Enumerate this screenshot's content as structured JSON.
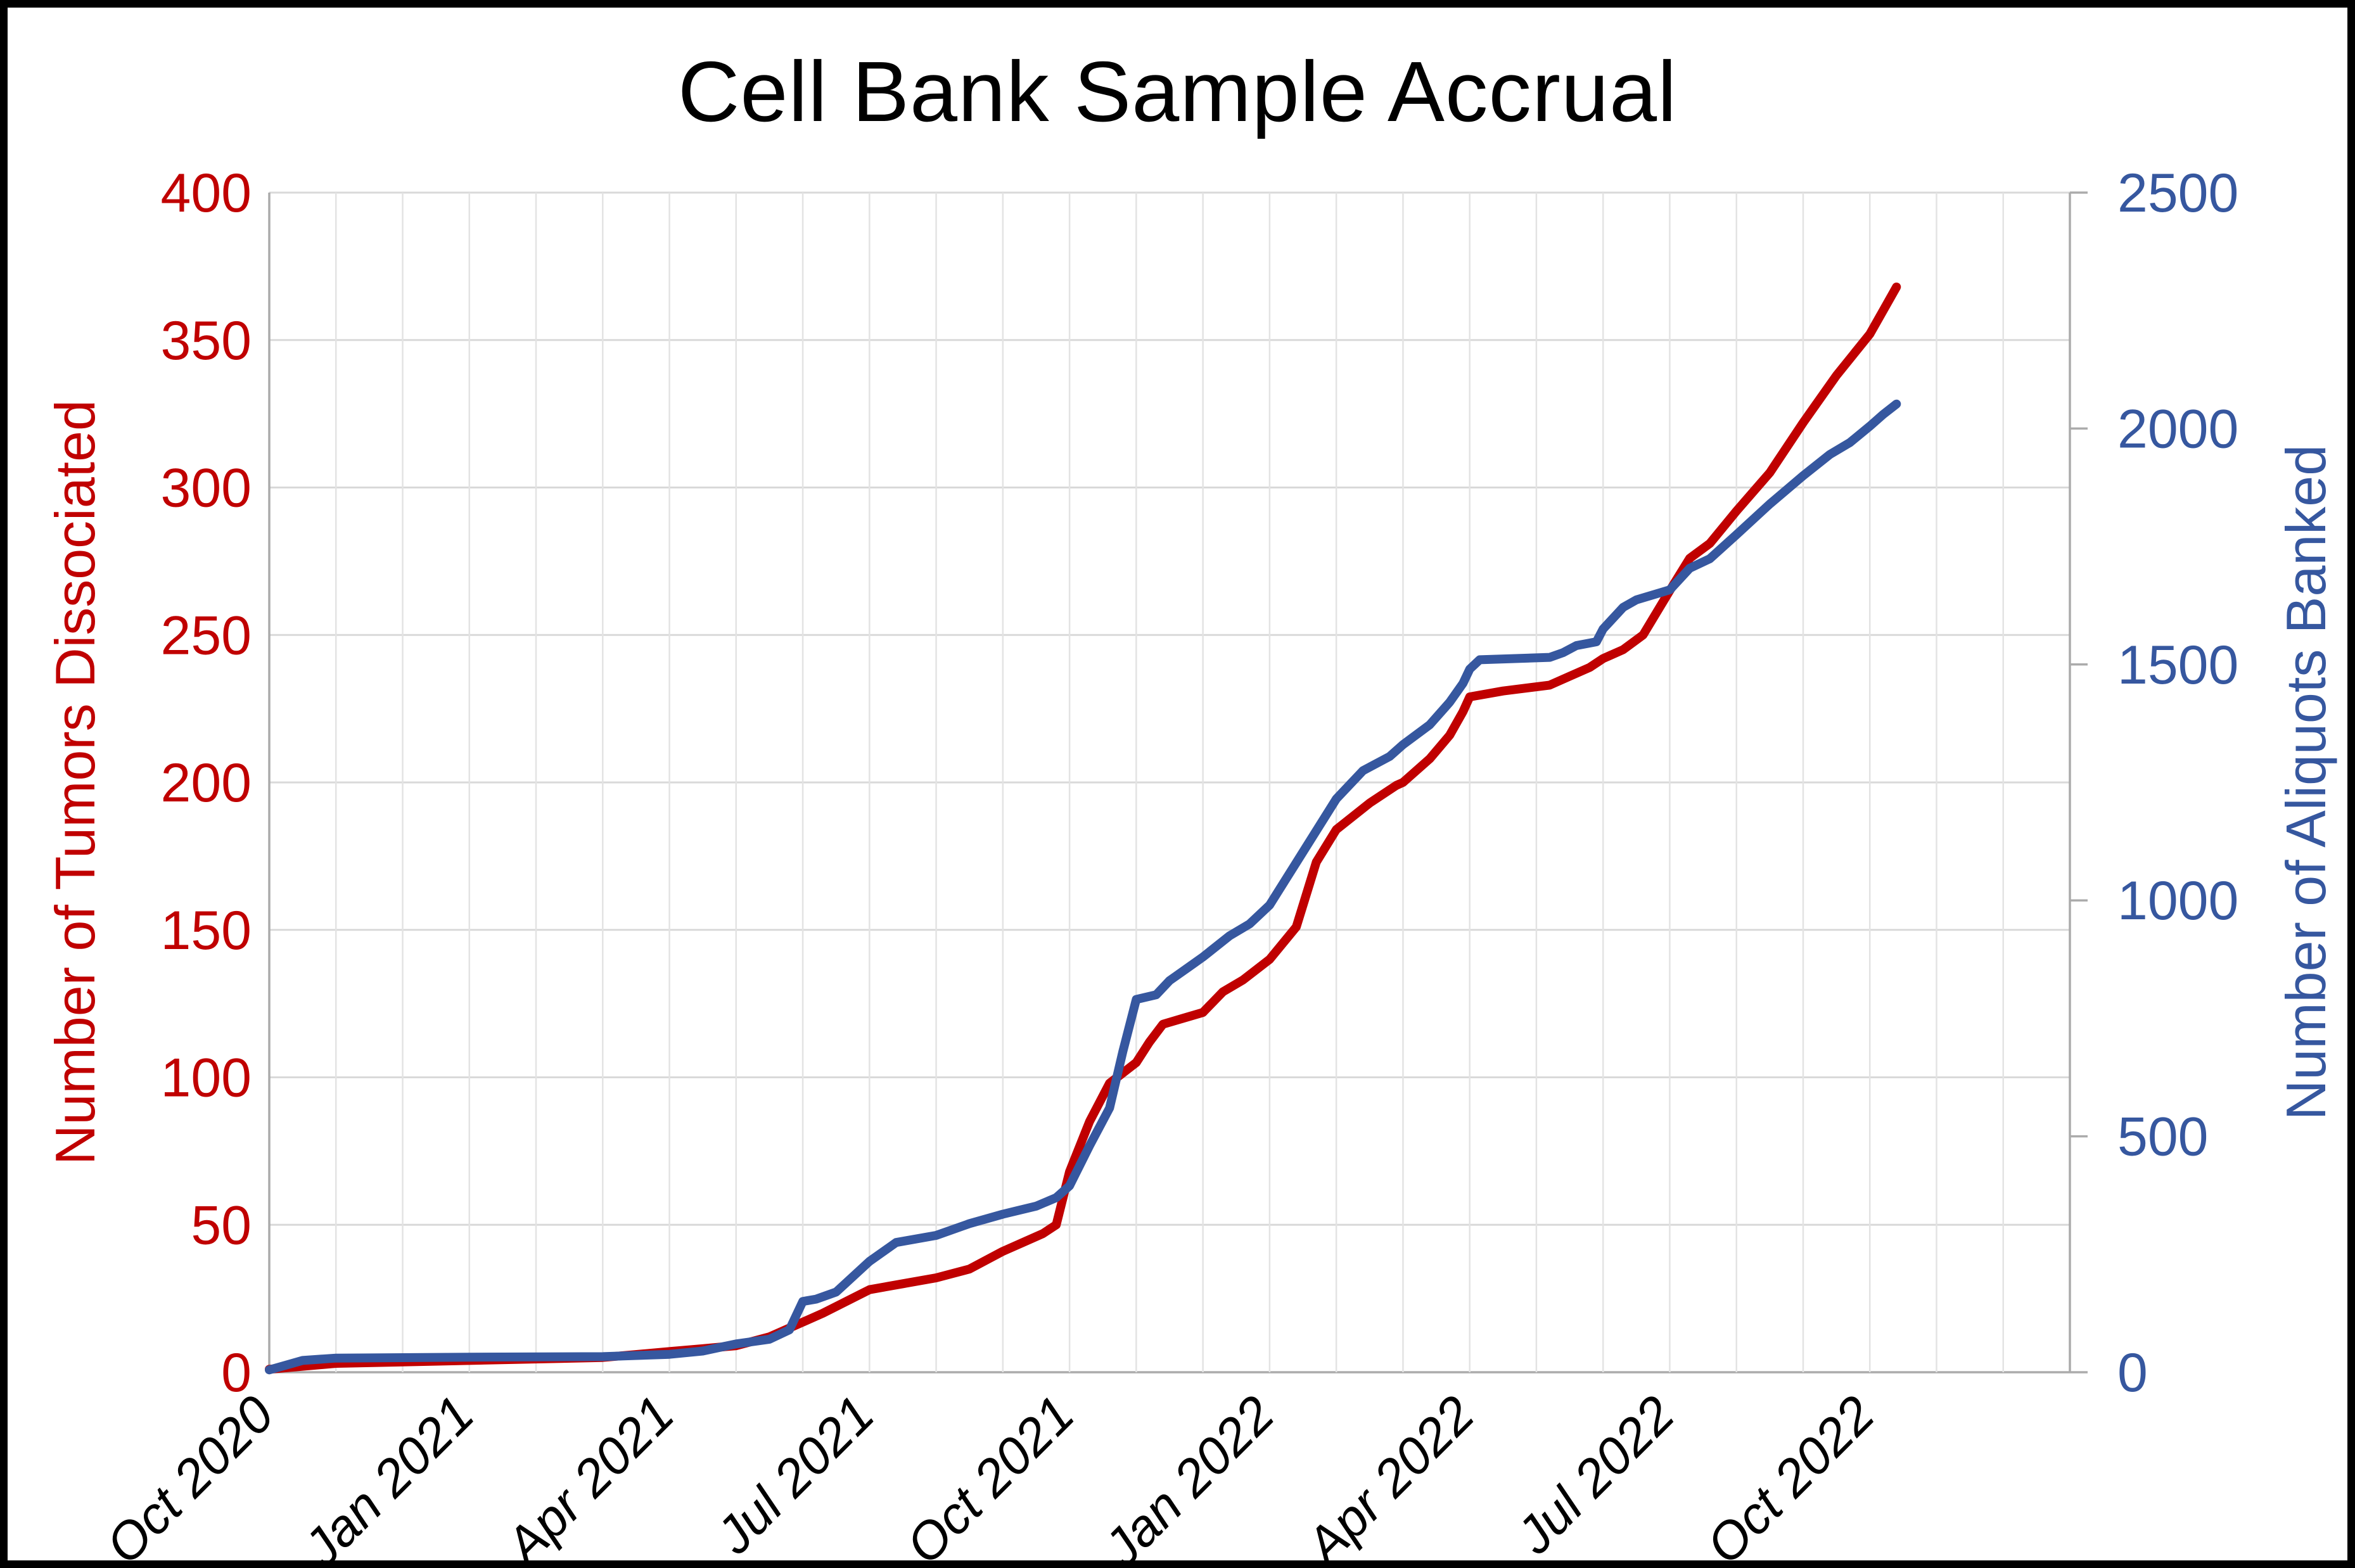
{
  "title": "Cell Bank Sample Accrual",
  "left_axis": {
    "title": "Number of Tumors Dissociated",
    "color": "#C00000",
    "min": 0,
    "max": 400,
    "step": 50,
    "tick_labels": [
      "0",
      "50",
      "100",
      "150",
      "200",
      "250",
      "300",
      "350",
      "400"
    ]
  },
  "right_axis": {
    "title": "Number of Aliquots Banked",
    "color": "#36579F",
    "min": 0,
    "max": 2500,
    "step": 500,
    "tick_labels": [
      "0",
      "500",
      "1000",
      "1500",
      "2000",
      "2500"
    ]
  },
  "x_axis": {
    "unit": "months since Oct 2020",
    "months_total": 27,
    "tick_month_positions": [
      0,
      3,
      6,
      9,
      12,
      15,
      18,
      21,
      24
    ],
    "tick_labels": [
      "Oct 2020",
      "Jan 2021",
      "Apr 2021",
      "Jul 2021",
      "Oct 2021",
      "Jan 2022",
      "Apr 2022",
      "Jul 2022",
      "Oct 2022"
    ],
    "gridline_every_month": 1
  },
  "chart_data": {
    "type": "line",
    "title": "Cell Bank Sample Accrual",
    "x_unit": "months since Oct 2020 (0 = Oct 2020, 27 = Jan 2023)",
    "grid": "on",
    "legend": "none",
    "series": [
      {
        "name": "Number of Tumors Dissociated",
        "axis": "left",
        "color": "#C00000",
        "ylim": [
          0,
          400
        ],
        "points": [
          [
            0,
            1
          ],
          [
            1,
            3
          ],
          [
            3,
            4
          ],
          [
            5,
            5
          ],
          [
            6,
            7
          ],
          [
            6.5,
            8
          ],
          [
            7,
            9
          ],
          [
            7.5,
            12
          ],
          [
            8,
            17
          ],
          [
            8.3,
            20
          ],
          [
            9,
            28
          ],
          [
            9.5,
            30
          ],
          [
            10,
            32
          ],
          [
            10.5,
            35
          ],
          [
            11,
            41
          ],
          [
            11.3,
            44
          ],
          [
            11.6,
            47
          ],
          [
            11.8,
            50
          ],
          [
            12,
            68
          ],
          [
            12.3,
            85
          ],
          [
            12.6,
            98
          ],
          [
            13,
            105
          ],
          [
            13.2,
            112
          ],
          [
            13.4,
            118
          ],
          [
            13.7,
            120
          ],
          [
            14,
            122
          ],
          [
            14.3,
            129
          ],
          [
            14.6,
            133
          ],
          [
            15,
            140
          ],
          [
            15.4,
            151
          ],
          [
            15.7,
            173
          ],
          [
            16,
            184
          ],
          [
            16.5,
            193
          ],
          [
            16.9,
            199
          ],
          [
            17,
            200
          ],
          [
            17.4,
            208
          ],
          [
            17.7,
            216
          ],
          [
            17.9,
            224
          ],
          [
            18,
            229
          ],
          [
            18.5,
            231
          ],
          [
            19.2,
            233
          ],
          [
            19.5,
            236
          ],
          [
            19.8,
            239
          ],
          [
            20,
            242
          ],
          [
            20.3,
            245
          ],
          [
            20.6,
            250
          ],
          [
            21,
            265
          ],
          [
            21.3,
            276
          ],
          [
            21.6,
            281
          ],
          [
            22,
            292
          ],
          [
            22.5,
            305
          ],
          [
            23,
            322
          ],
          [
            23.5,
            338
          ],
          [
            24,
            352
          ],
          [
            24.2,
            360
          ],
          [
            24.4,
            368
          ]
        ]
      },
      {
        "name": "Number of Aliquots Banked",
        "axis": "right",
        "color": "#36579F",
        "ylim": [
          0,
          2500
        ],
        "points": [
          [
            0,
            5
          ],
          [
            0.5,
            25
          ],
          [
            1,
            30
          ],
          [
            3,
            32
          ],
          [
            5,
            33
          ],
          [
            6,
            38
          ],
          [
            6.5,
            45
          ],
          [
            7,
            60
          ],
          [
            7.5,
            70
          ],
          [
            7.8,
            90
          ],
          [
            8,
            150
          ],
          [
            8.2,
            155
          ],
          [
            8.5,
            170
          ],
          [
            9,
            235
          ],
          [
            9.4,
            275
          ],
          [
            10,
            290
          ],
          [
            10.5,
            315
          ],
          [
            11,
            335
          ],
          [
            11.5,
            352
          ],
          [
            11.8,
            370
          ],
          [
            12,
            395
          ],
          [
            12.3,
            480
          ],
          [
            12.6,
            560
          ],
          [
            12.8,
            680
          ],
          [
            13,
            790
          ],
          [
            13.3,
            800
          ],
          [
            13.5,
            830
          ],
          [
            13.8,
            860
          ],
          [
            14,
            880
          ],
          [
            14.4,
            925
          ],
          [
            14.7,
            950
          ],
          [
            15,
            990
          ],
          [
            15.4,
            1080
          ],
          [
            16,
            1215
          ],
          [
            16.4,
            1275
          ],
          [
            16.8,
            1305
          ],
          [
            17,
            1330
          ],
          [
            17.4,
            1372
          ],
          [
            17.7,
            1420
          ],
          [
            17.9,
            1460
          ],
          [
            18,
            1490
          ],
          [
            18.15,
            1510
          ],
          [
            19.2,
            1515
          ],
          [
            19.4,
            1525
          ],
          [
            19.6,
            1540
          ],
          [
            19.9,
            1548
          ],
          [
            20,
            1575
          ],
          [
            20.3,
            1621
          ],
          [
            20.5,
            1637
          ],
          [
            21,
            1658
          ],
          [
            21.3,
            1704
          ],
          [
            21.6,
            1724
          ],
          [
            22,
            1775
          ],
          [
            22.5,
            1840
          ],
          [
            23,
            1900
          ],
          [
            23.4,
            1945
          ],
          [
            23.7,
            1970
          ],
          [
            24,
            2005
          ],
          [
            24.2,
            2030
          ],
          [
            24.4,
            2052
          ]
        ]
      }
    ]
  }
}
